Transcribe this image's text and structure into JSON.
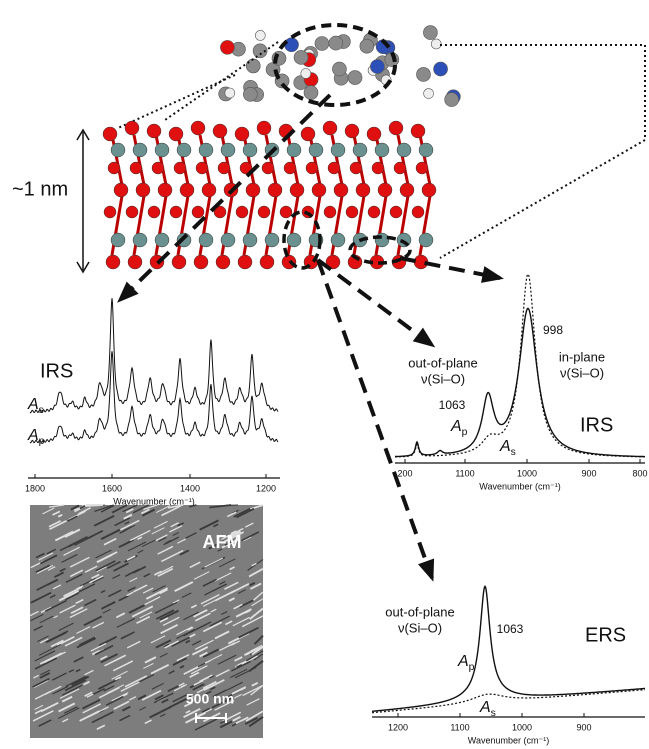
{
  "scale_label": "~1 nm",
  "left_spectrum": {
    "title": "IRS",
    "traces": [
      {
        "symbol": "A",
        "subscript": "s"
      },
      {
        "symbol": "A",
        "subscript": "p"
      }
    ],
    "xticks": [
      1800,
      1600,
      1400,
      1200
    ],
    "xlabel": "Wavenumber (cm⁻¹)"
  },
  "afm": {
    "title": "AFM",
    "scale_bar": "500 nm"
  },
  "right_spectrum": {
    "title": "IRS",
    "out_of_plane": {
      "label": "out-of-plane",
      "mode": "ν(Si–O)",
      "peak": 1063
    },
    "in_plane": {
      "label": "in-plane",
      "mode": "ν(Si–O)",
      "peak": 998
    },
    "traces": [
      {
        "symbol": "A",
        "subscript": "p"
      },
      {
        "symbol": "A",
        "subscript": "s"
      }
    ],
    "xticks": [
      200,
      1100,
      1000,
      900,
      800
    ],
    "xlabel": "Wavenumber (cm⁻¹)"
  },
  "ers_spectrum": {
    "title": "ERS",
    "out_of_plane": {
      "label": "out-of-plane",
      "mode": "ν(Si–O)",
      "peak": 1063
    },
    "traces": [
      {
        "symbol": "A",
        "subscript": "p"
      },
      {
        "symbol": "A",
        "subscript": "s"
      }
    ],
    "xticks": [
      1200,
      1100,
      1000,
      900
    ],
    "xlabel": "Wavenumber (cm⁻¹)"
  }
}
